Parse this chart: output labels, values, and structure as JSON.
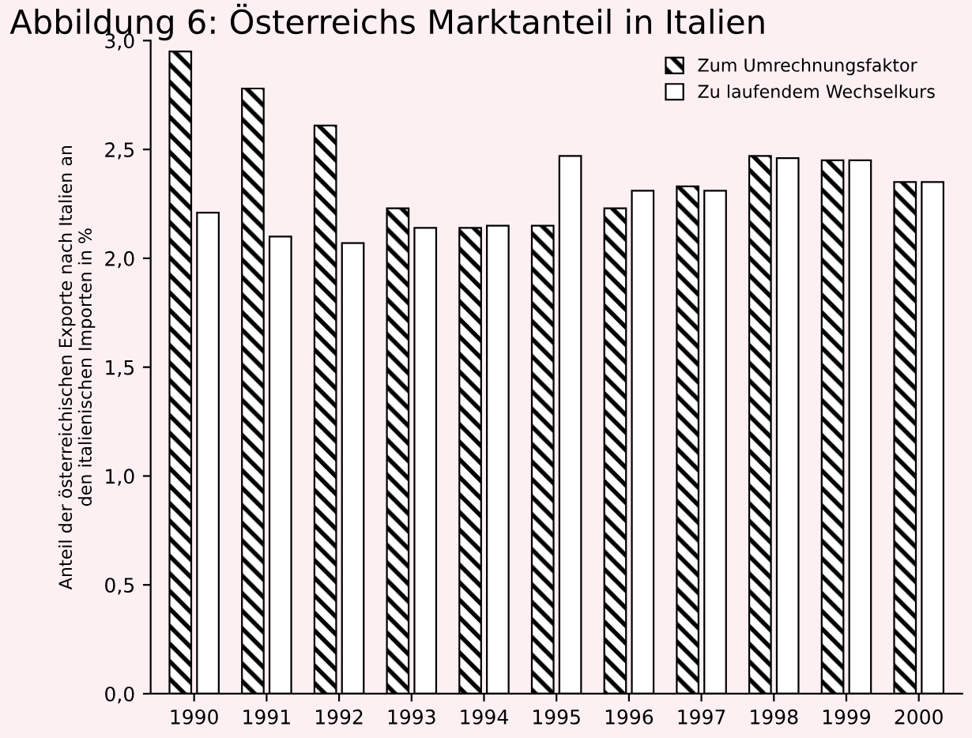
{
  "chart_data": {
    "type": "bar",
    "title": "Abbildung 6: Österreichs Marktanteil in Italien",
    "ylabel": "Anteil der österreichischen Exporte nach Italien an\nden italienischen Importen in %",
    "categories": [
      "1990",
      "1991",
      "1992",
      "1993",
      "1994",
      "1995",
      "1996",
      "1997",
      "1998",
      "1999",
      "2000"
    ],
    "series": [
      {
        "name": "Zum Umrechnungsfaktor",
        "color": "#000000",
        "values": [
          2.95,
          2.78,
          2.61,
          2.23,
          2.14,
          2.15,
          2.23,
          2.33,
          2.47,
          2.45,
          2.35
        ]
      },
      {
        "name": "Zu laufendem Wechselkurs",
        "color": "#ffffff",
        "values": [
          2.21,
          2.1,
          2.07,
          2.14,
          2.15,
          2.47,
          2.31,
          2.31,
          2.46,
          2.45,
          2.35
        ]
      }
    ],
    "ylim": [
      0,
      3
    ],
    "yticks": [
      {
        "value": 0,
        "label": "0,0"
      },
      {
        "value": 0.5,
        "label": "0,5"
      },
      {
        "value": 1,
        "label": "1,0"
      },
      {
        "value": 1.5,
        "label": "1,5"
      },
      {
        "value": 2,
        "label": "2,0"
      },
      {
        "value": 2.5,
        "label": "2,5"
      },
      {
        "value": 3,
        "label": "3,0"
      }
    ],
    "grid": false,
    "legend": "top right"
  }
}
